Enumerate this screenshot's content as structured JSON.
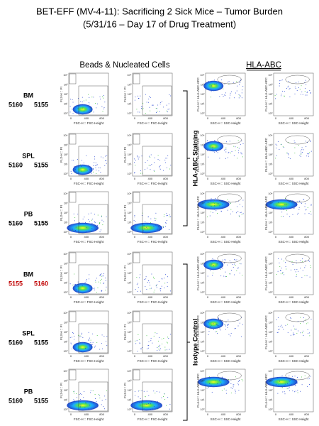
{
  "title": [
    "BET-EFF (MV-4-11): Sacrificing 2 Sick Mice – Tumor Burden",
    "(5/31/16 – Day 17 of Drug Treatment)"
  ],
  "headers": [
    "Beads & Nucleated Cells",
    "HLA-ABC"
  ],
  "groups": [
    "HLA-ABC Staining",
    "Isotype Control"
  ],
  "rows": [
    {
      "tissue": "BM",
      "ids": [
        "5160",
        "5155"
      ]
    },
    {
      "tissue": "SPL",
      "ids": [
        "5160",
        "5155"
      ]
    },
    {
      "tissue": "PB",
      "ids": [
        "5160",
        "5155"
      ]
    },
    {
      "tissue": "BM",
      "ids": [
        "5155",
        "5160"
      ],
      "id_color": "#c00000"
    },
    {
      "tissue": "SPL",
      "ids": [
        "5160",
        "5155"
      ]
    },
    {
      "tissue": "PB",
      "ids": [
        "5160",
        "5155"
      ]
    }
  ],
  "panels": [
    {
      "x_label": "FSC-H :: FSC-Height",
      "y_label": "FL3-H :: PI"
    },
    {
      "x_label": "FSC-H :: FSC-Height",
      "y_label": "FL3-H :: PI"
    },
    {
      "x_label": "SSC-H :: SSC-Height",
      "y_label": "FL4-H :: HLA-ABC-APC"
    },
    {
      "x_label": "SSC-H :: SSC-Height",
      "y_label": "FL4-H :: HLA-ABC-APC"
    }
  ],
  "x_ticks": [
    "0",
    "400",
    "800"
  ],
  "y_ticks": [
    "10⁰",
    "10¹",
    "10²",
    "10³",
    "10⁴"
  ]
}
